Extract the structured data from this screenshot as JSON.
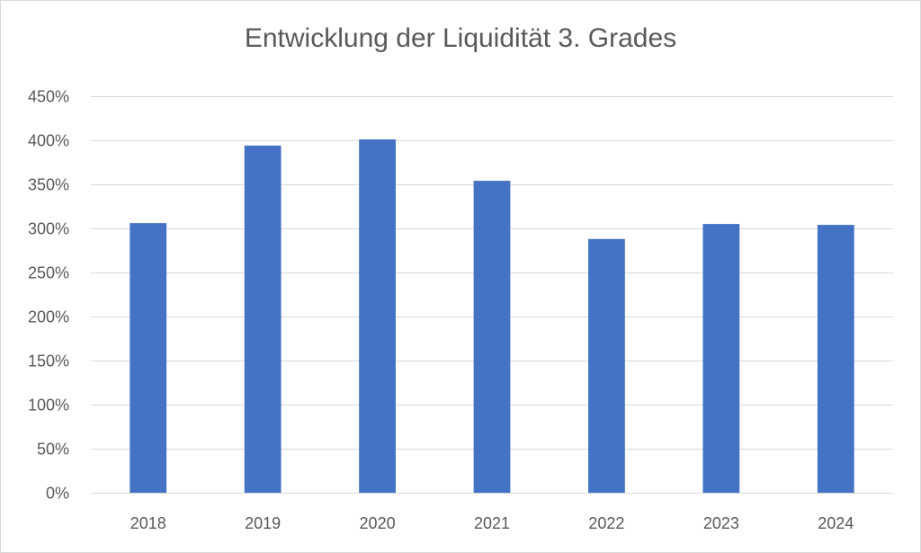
{
  "chart_data": {
    "type": "bar",
    "title": "Entwicklung der Liquidität 3. Grades",
    "xlabel": "",
    "ylabel": "",
    "categories": [
      "2018",
      "2019",
      "2020",
      "2021",
      "2022",
      "2023",
      "2024"
    ],
    "values": [
      306,
      394,
      401,
      354,
      288,
      305,
      304
    ],
    "ylim": [
      0,
      450
    ],
    "yticks": [
      0,
      50,
      100,
      150,
      200,
      250,
      300,
      350,
      400,
      450
    ],
    "ytick_labels": [
      "0%",
      "50%",
      "100%",
      "150%",
      "200%",
      "250%",
      "300%",
      "350%",
      "400%",
      "450%"
    ],
    "grid": true,
    "legend": "none",
    "colors": {
      "bar": "#4472c4",
      "grid": "#d9d9d9",
      "text": "#595959"
    }
  }
}
